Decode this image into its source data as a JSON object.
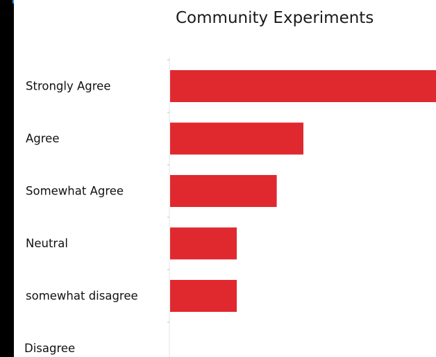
{
  "colors": {
    "bar": "#e0282f",
    "background": "#ffffff",
    "frame": "#000000",
    "accent_edge": "#1e90ff"
  },
  "chart_data": {
    "type": "bar",
    "orientation": "horizontal",
    "title": "Community Experiments",
    "categories": [
      "Strongly Agree",
      "Agree",
      "Somewhat Agree",
      "Neutral",
      "somewhat disagree",
      "Disagree"
    ],
    "values": [
      10,
      5,
      4,
      2.5,
      2.5,
      0
    ],
    "xlim": [
      0,
      10
    ],
    "grid": false,
    "legend": "none"
  }
}
